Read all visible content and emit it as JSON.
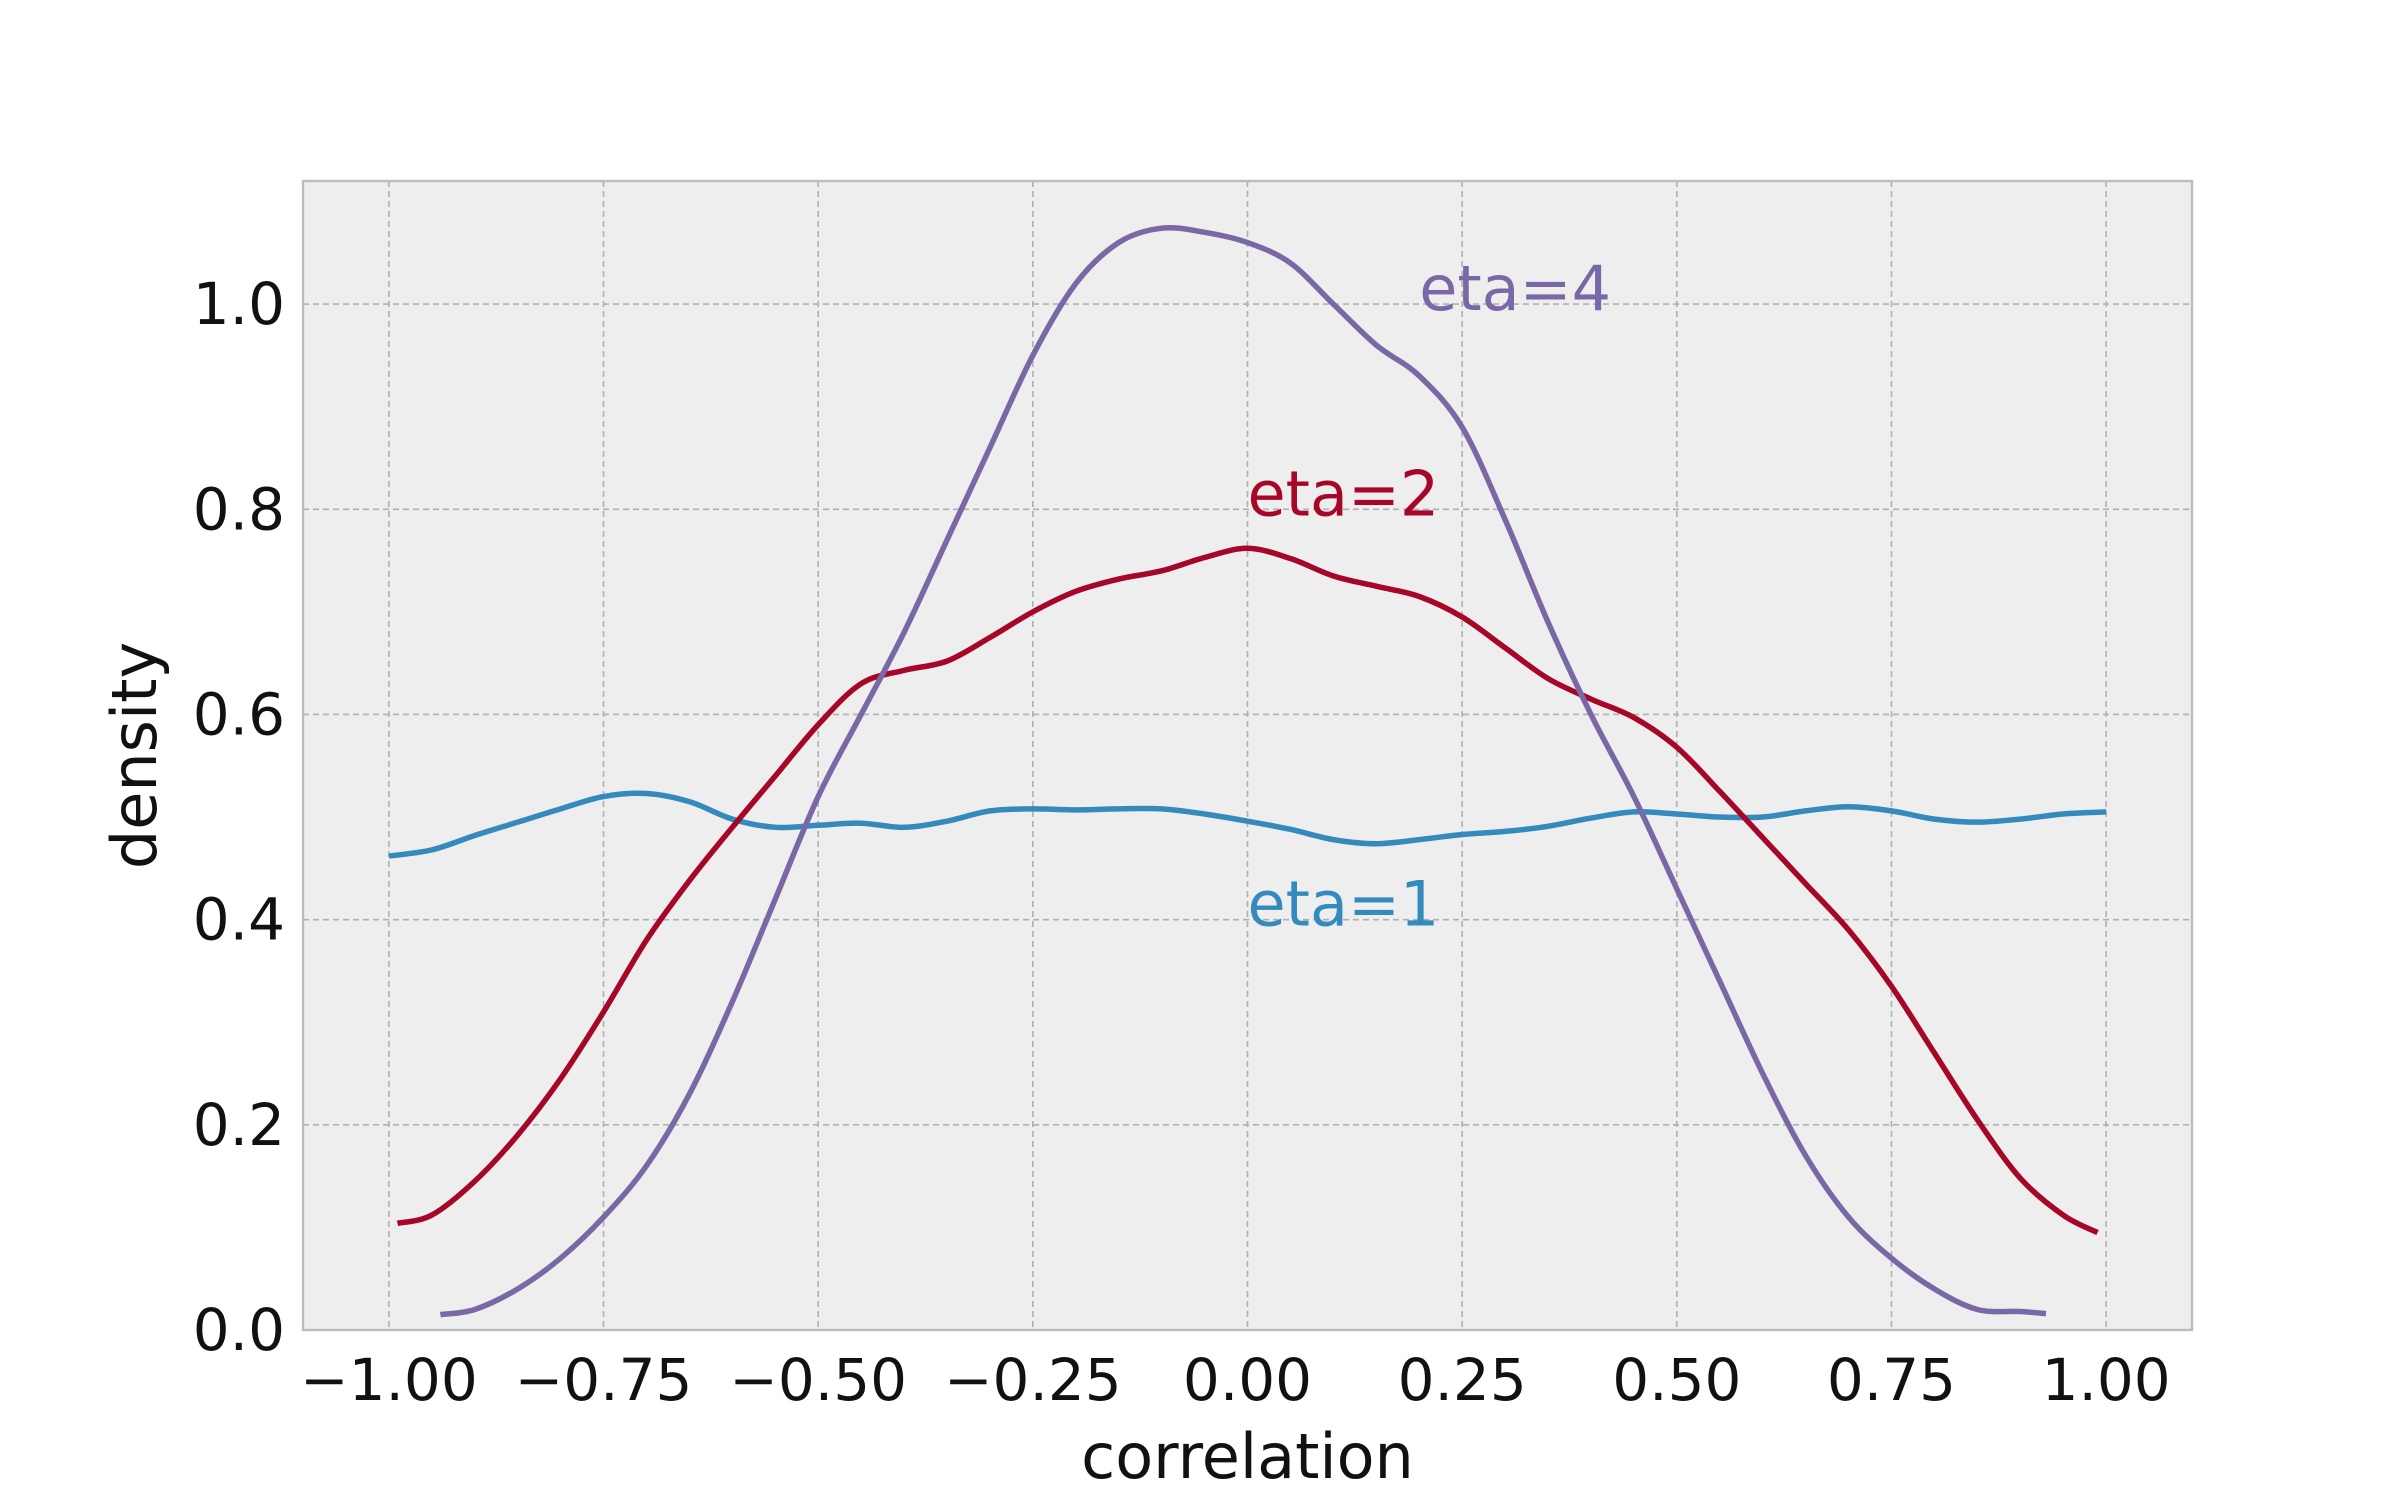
{
  "chart_data": {
    "type": "line",
    "title": "",
    "xlabel": "correlation",
    "ylabel": "density",
    "xlim": [
      -1.1,
      1.1
    ],
    "ylim": [
      0.0,
      1.12
    ],
    "xticks": [
      -1.0,
      -0.75,
      -0.5,
      -0.25,
      0.0,
      0.25,
      0.5,
      0.75,
      1.0
    ],
    "xtick_labels": [
      "−1.00",
      "−0.75",
      "−0.50",
      "−0.25",
      "0.00",
      "0.25",
      "0.50",
      "0.75",
      "1.00"
    ],
    "yticks": [
      0.0,
      0.2,
      0.4,
      0.6,
      0.8,
      1.0
    ],
    "ytick_labels": [
      "0.0",
      "0.2",
      "0.4",
      "0.6",
      "0.8",
      "1.0"
    ],
    "grid": true,
    "background": "#eeeeee",
    "series": [
      {
        "name": "eta=1",
        "color": "#348abd",
        "label_pos": [
          0.0,
          0.4
        ],
        "x": [
          -1.0,
          -0.95,
          -0.9,
          -0.85,
          -0.8,
          -0.75,
          -0.7,
          -0.65,
          -0.6,
          -0.55,
          -0.5,
          -0.45,
          -0.4,
          -0.35,
          -0.3,
          -0.25,
          -0.2,
          -0.15,
          -0.1,
          -0.05,
          0.0,
          0.05,
          0.1,
          0.15,
          0.2,
          0.25,
          0.3,
          0.35,
          0.4,
          0.45,
          0.5,
          0.55,
          0.6,
          0.65,
          0.7,
          0.75,
          0.8,
          0.85,
          0.9,
          0.95,
          1.0
        ],
        "y": [
          0.462,
          0.468,
          0.482,
          0.495,
          0.508,
          0.52,
          0.523,
          0.515,
          0.498,
          0.49,
          0.492,
          0.494,
          0.49,
          0.496,
          0.506,
          0.508,
          0.507,
          0.508,
          0.508,
          0.503,
          0.496,
          0.488,
          0.478,
          0.474,
          0.478,
          0.483,
          0.486,
          0.491,
          0.499,
          0.505,
          0.503,
          0.5,
          0.5,
          0.506,
          0.51,
          0.506,
          0.498,
          0.495,
          0.498,
          0.503,
          0.505
        ]
      },
      {
        "name": "eta=2",
        "color": "#a60628",
        "label_pos": [
          0.0,
          0.8
        ],
        "x": [
          -0.99,
          -0.95,
          -0.9,
          -0.85,
          -0.8,
          -0.75,
          -0.7,
          -0.65,
          -0.6,
          -0.55,
          -0.5,
          -0.45,
          -0.4,
          -0.35,
          -0.3,
          -0.25,
          -0.2,
          -0.15,
          -0.1,
          -0.05,
          0.0,
          0.05,
          0.1,
          0.15,
          0.2,
          0.25,
          0.3,
          0.35,
          0.4,
          0.45,
          0.5,
          0.55,
          0.6,
          0.65,
          0.7,
          0.75,
          0.8,
          0.85,
          0.9,
          0.95,
          0.99
        ],
        "y": [
          0.104,
          0.112,
          0.145,
          0.19,
          0.245,
          0.31,
          0.38,
          0.438,
          0.49,
          0.54,
          0.59,
          0.63,
          0.643,
          0.652,
          0.675,
          0.7,
          0.72,
          0.732,
          0.74,
          0.753,
          0.762,
          0.752,
          0.735,
          0.725,
          0.715,
          0.695,
          0.665,
          0.635,
          0.615,
          0.597,
          0.568,
          0.525,
          0.48,
          0.435,
          0.39,
          0.335,
          0.27,
          0.205,
          0.148,
          0.112,
          0.095
        ]
      },
      {
        "name": "eta=4",
        "color": "#7a68a6",
        "label_pos": [
          0.2,
          1.0
        ],
        "x": [
          -0.94,
          -0.9,
          -0.85,
          -0.8,
          -0.75,
          -0.7,
          -0.65,
          -0.6,
          -0.55,
          -0.5,
          -0.45,
          -0.4,
          -0.35,
          -0.3,
          -0.25,
          -0.2,
          -0.15,
          -0.1,
          -0.05,
          0.0,
          0.05,
          0.1,
          0.15,
          0.2,
          0.25,
          0.3,
          0.35,
          0.4,
          0.45,
          0.5,
          0.55,
          0.6,
          0.65,
          0.7,
          0.75,
          0.8,
          0.85,
          0.9,
          0.93
        ],
        "y": [
          0.015,
          0.02,
          0.04,
          0.07,
          0.11,
          0.16,
          0.23,
          0.32,
          0.42,
          0.52,
          0.6,
          0.68,
          0.77,
          0.86,
          0.95,
          1.02,
          1.06,
          1.074,
          1.07,
          1.06,
          1.04,
          1.0,
          0.96,
          0.93,
          0.88,
          0.79,
          0.69,
          0.6,
          0.52,
          0.43,
          0.34,
          0.25,
          0.17,
          0.11,
          0.07,
          0.04,
          0.02,
          0.018,
          0.016
        ]
      }
    ]
  }
}
